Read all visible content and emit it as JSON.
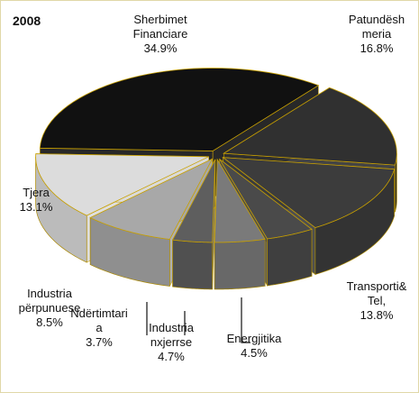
{
  "chart_data": {
    "type": "pie3d",
    "title": "2008",
    "categories": [
      "Sherbimet\nFinanciare",
      "Patundësh\nmeria",
      "Transporti&\nTel,",
      "Energjitika",
      "Industria\nnxjerrse",
      "Ndërtimtari\na",
      "Industria\npërpunuese",
      "Tjera"
    ],
    "values": [
      34.9,
      16.8,
      13.8,
      4.5,
      4.7,
      3.7,
      8.5,
      13.1
    ],
    "value_labels": [
      "34.9%",
      "16.8%",
      "13.8%",
      "4.5%",
      "4.7%",
      "3.7%",
      "8.5%",
      "13.1%"
    ],
    "colors": [
      "#111111",
      "#303030",
      "#3c3c3c",
      "#4a4a4a",
      "#7a7a7a",
      "#5e5e5e",
      "#a8a8a8",
      "#dcdcdc"
    ]
  }
}
